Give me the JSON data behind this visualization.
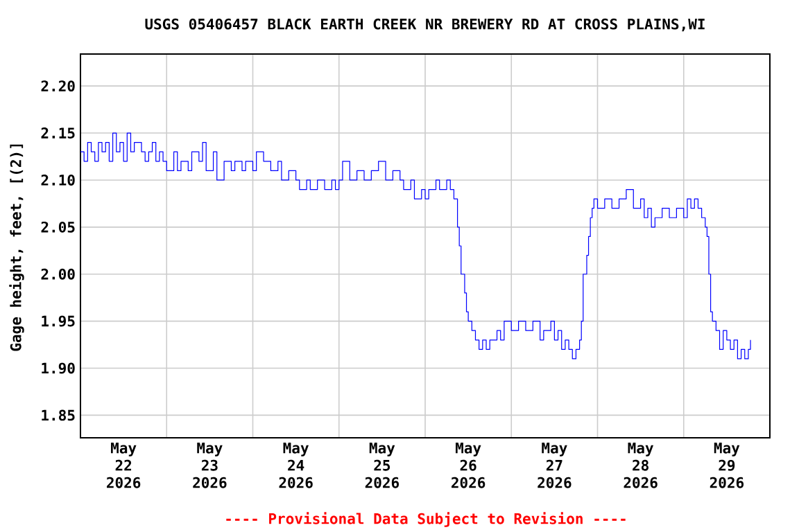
{
  "chart_data": {
    "type": "step",
    "title": "USGS 05406457 BLACK EARTH CREEK NR BREWERY RD AT CROSS PLAINS,WI",
    "ylabel": "Gage height, feet, [(2)]",
    "annotations": [
      "---- Provisional Data Subject to Revision ----"
    ],
    "xlim": [
      "2026-05-22T00:00",
      "2026-05-30T00:00"
    ],
    "ylim": [
      1.826,
      2.234
    ],
    "yticks": [
      1.85,
      {
        "value": 1.9,
        "label": "1.90"
      },
      1.95,
      {
        "value": 2.0,
        "label": "2.00"
      },
      2.05,
      {
        "value": 2.1,
        "label": "2.10"
      },
      2.15,
      {
        "value": 2.2,
        "label": "2.20"
      }
    ],
    "xticks": [
      {
        "value": "2026-05-23T00:00",
        "label": null
      },
      {
        "value": "2026-05-24T00:00",
        "label": null
      },
      {
        "value": "2026-05-25T00:00",
        "label": null
      },
      {
        "value": "2026-05-26T00:00",
        "label": null
      },
      {
        "value": "2026-05-27T00:00",
        "label": null
      },
      {
        "value": "2026-05-28T00:00",
        "label": null
      },
      {
        "value": "2026-05-29T00:00",
        "label": null
      },
      {
        "value": "2026-05-22T12:00",
        "label": "May 22 2026"
      },
      {
        "value": "2026-05-23T12:00",
        "label": "May 23 2026"
      },
      {
        "value": "2026-05-24T12:00",
        "label": "May 24 2026"
      },
      {
        "value": "2026-05-25T12:00",
        "label": "May 25 2026"
      },
      {
        "value": "2026-05-26T12:00",
        "label": "May 26 2026"
      },
      {
        "value": "2026-05-27T12:00",
        "label": "May 27 2026"
      },
      {
        "value": "2026-05-28T12:00",
        "label": "May 28 2026"
      },
      {
        "value": "2026-05-29T12:00",
        "label": "May 29 2026"
      }
    ],
    "grid": true,
    "marker": "none",
    "line_style": "solid",
    "series": [
      {
        "color": "#0000ff",
        "x": [
          "2026-05-22T00:00",
          "2026-05-22T01:00",
          "2026-05-22T02:00",
          "2026-05-22T03:00",
          "2026-05-22T04:00",
          "2026-05-22T05:00",
          "2026-05-22T06:00",
          "2026-05-22T07:00",
          "2026-05-22T08:00",
          "2026-05-22T09:00",
          "2026-05-22T10:00",
          "2026-05-22T11:00",
          "2026-05-22T12:00",
          "2026-05-22T13:00",
          "2026-05-22T14:00",
          "2026-05-22T15:00",
          "2026-05-22T16:00",
          "2026-05-22T17:00",
          "2026-05-22T18:00",
          "2026-05-22T19:00",
          "2026-05-22T20:00",
          "2026-05-22T21:00",
          "2026-05-22T22:00",
          "2026-05-22T23:00",
          "2026-05-23T00:00",
          "2026-05-23T02:00",
          "2026-05-23T03:00",
          "2026-05-23T04:00",
          "2026-05-23T06:00",
          "2026-05-23T07:00",
          "2026-05-23T09:00",
          "2026-05-23T10:00",
          "2026-05-23T11:00",
          "2026-05-23T13:00",
          "2026-05-23T14:00",
          "2026-05-23T16:00",
          "2026-05-23T18:00",
          "2026-05-23T19:00",
          "2026-05-23T21:00",
          "2026-05-23T22:00",
          "2026-05-24T00:00",
          "2026-05-24T01:00",
          "2026-05-24T03:00",
          "2026-05-24T05:00",
          "2026-05-24T07:00",
          "2026-05-24T08:00",
          "2026-05-24T10:00",
          "2026-05-24T12:00",
          "2026-05-24T13:00",
          "2026-05-24T15:00",
          "2026-05-24T16:00",
          "2026-05-24T18:00",
          "2026-05-24T20:00",
          "2026-05-24T22:00",
          "2026-05-24T23:00",
          "2026-05-25T00:00",
          "2026-05-25T01:00",
          "2026-05-25T03:00",
          "2026-05-25T05:00",
          "2026-05-25T07:00",
          "2026-05-25T09:00",
          "2026-05-25T11:00",
          "2026-05-25T13:00",
          "2026-05-25T15:00",
          "2026-05-25T17:00",
          "2026-05-25T18:00",
          "2026-05-25T20:00",
          "2026-05-25T21:00",
          "2026-05-25T23:00",
          "2026-05-26T00:00",
          "2026-05-26T01:00",
          "2026-05-26T03:00",
          "2026-05-26T04:00",
          "2026-05-26T06:00",
          "2026-05-26T07:00",
          "2026-05-26T08:00",
          "2026-05-26T09:00",
          "2026-05-26T09:30",
          "2026-05-26T10:00",
          "2026-05-26T11:00",
          "2026-05-26T11:30",
          "2026-05-26T12:00",
          "2026-05-26T13:00",
          "2026-05-26T14:00",
          "2026-05-26T15:00",
          "2026-05-26T16:00",
          "2026-05-26T17:00",
          "2026-05-26T18:00",
          "2026-05-26T20:00",
          "2026-05-26T21:00",
          "2026-05-26T22:00",
          "2026-05-27T00:00",
          "2026-05-27T02:00",
          "2026-05-27T04:00",
          "2026-05-27T06:00",
          "2026-05-27T08:00",
          "2026-05-27T09:00",
          "2026-05-27T11:00",
          "2026-05-27T12:00",
          "2026-05-27T13:00",
          "2026-05-27T14:00",
          "2026-05-27T15:00",
          "2026-05-27T16:00",
          "2026-05-27T17:00",
          "2026-05-27T18:00",
          "2026-05-27T19:00",
          "2026-05-27T19:30",
          "2026-05-27T20:00",
          "2026-05-27T21:00",
          "2026-05-27T21:30",
          "2026-05-27T22:00",
          "2026-05-27T22:30",
          "2026-05-27T23:00",
          "2026-05-28T00:00",
          "2026-05-28T02:00",
          "2026-05-28T04:00",
          "2026-05-28T06:00",
          "2026-05-28T08:00",
          "2026-05-28T10:00",
          "2026-05-28T12:00",
          "2026-05-28T13:00",
          "2026-05-28T14:00",
          "2026-05-28T15:00",
          "2026-05-28T16:00",
          "2026-05-28T18:00",
          "2026-05-28T20:00",
          "2026-05-28T22:00",
          "2026-05-29T00:00",
          "2026-05-29T01:00",
          "2026-05-29T02:00",
          "2026-05-29T03:00",
          "2026-05-29T04:00",
          "2026-05-29T05:00",
          "2026-05-29T06:00",
          "2026-05-29T06:30",
          "2026-05-29T07:00",
          "2026-05-29T07:30",
          "2026-05-29T08:00",
          "2026-05-29T09:00",
          "2026-05-29T10:00",
          "2026-05-29T11:00",
          "2026-05-29T12:00",
          "2026-05-29T13:00",
          "2026-05-29T14:00",
          "2026-05-29T15:00",
          "2026-05-29T16:00",
          "2026-05-29T17:00",
          "2026-05-29T18:00",
          "2026-05-29T18:36"
        ],
        "values": [
          2.13,
          2.12,
          2.14,
          2.13,
          2.12,
          2.14,
          2.13,
          2.14,
          2.12,
          2.15,
          2.13,
          2.14,
          2.12,
          2.15,
          2.13,
          2.14,
          2.14,
          2.13,
          2.12,
          2.13,
          2.14,
          2.12,
          2.13,
          2.12,
          2.11,
          2.13,
          2.11,
          2.12,
          2.11,
          2.13,
          2.12,
          2.14,
          2.11,
          2.13,
          2.1,
          2.12,
          2.11,
          2.12,
          2.11,
          2.12,
          2.11,
          2.13,
          2.12,
          2.11,
          2.12,
          2.1,
          2.11,
          2.1,
          2.09,
          2.1,
          2.09,
          2.1,
          2.09,
          2.1,
          2.09,
          2.1,
          2.12,
          2.1,
          2.11,
          2.1,
          2.11,
          2.12,
          2.1,
          2.11,
          2.1,
          2.09,
          2.1,
          2.08,
          2.09,
          2.08,
          2.09,
          2.1,
          2.09,
          2.1,
          2.09,
          2.08,
          2.05,
          2.03,
          2.0,
          1.98,
          1.96,
          1.95,
          1.94,
          1.93,
          1.92,
          1.93,
          1.92,
          1.93,
          1.94,
          1.93,
          1.95,
          1.94,
          1.95,
          1.94,
          1.95,
          1.93,
          1.94,
          1.95,
          1.93,
          1.94,
          1.92,
          1.93,
          1.92,
          1.91,
          1.92,
          1.93,
          1.95,
          2.0,
          2.02,
          2.04,
          2.06,
          2.07,
          2.08,
          2.07,
          2.08,
          2.07,
          2.08,
          2.09,
          2.07,
          2.08,
          2.06,
          2.07,
          2.05,
          2.06,
          2.07,
          2.06,
          2.07,
          2.06,
          2.08,
          2.07,
          2.08,
          2.07,
          2.06,
          2.05,
          2.04,
          2.0,
          1.96,
          1.95,
          1.94,
          1.92,
          1.94,
          1.93,
          1.92,
          1.93,
          1.91,
          1.92,
          1.91,
          1.92,
          1.93
        ]
      }
    ]
  }
}
